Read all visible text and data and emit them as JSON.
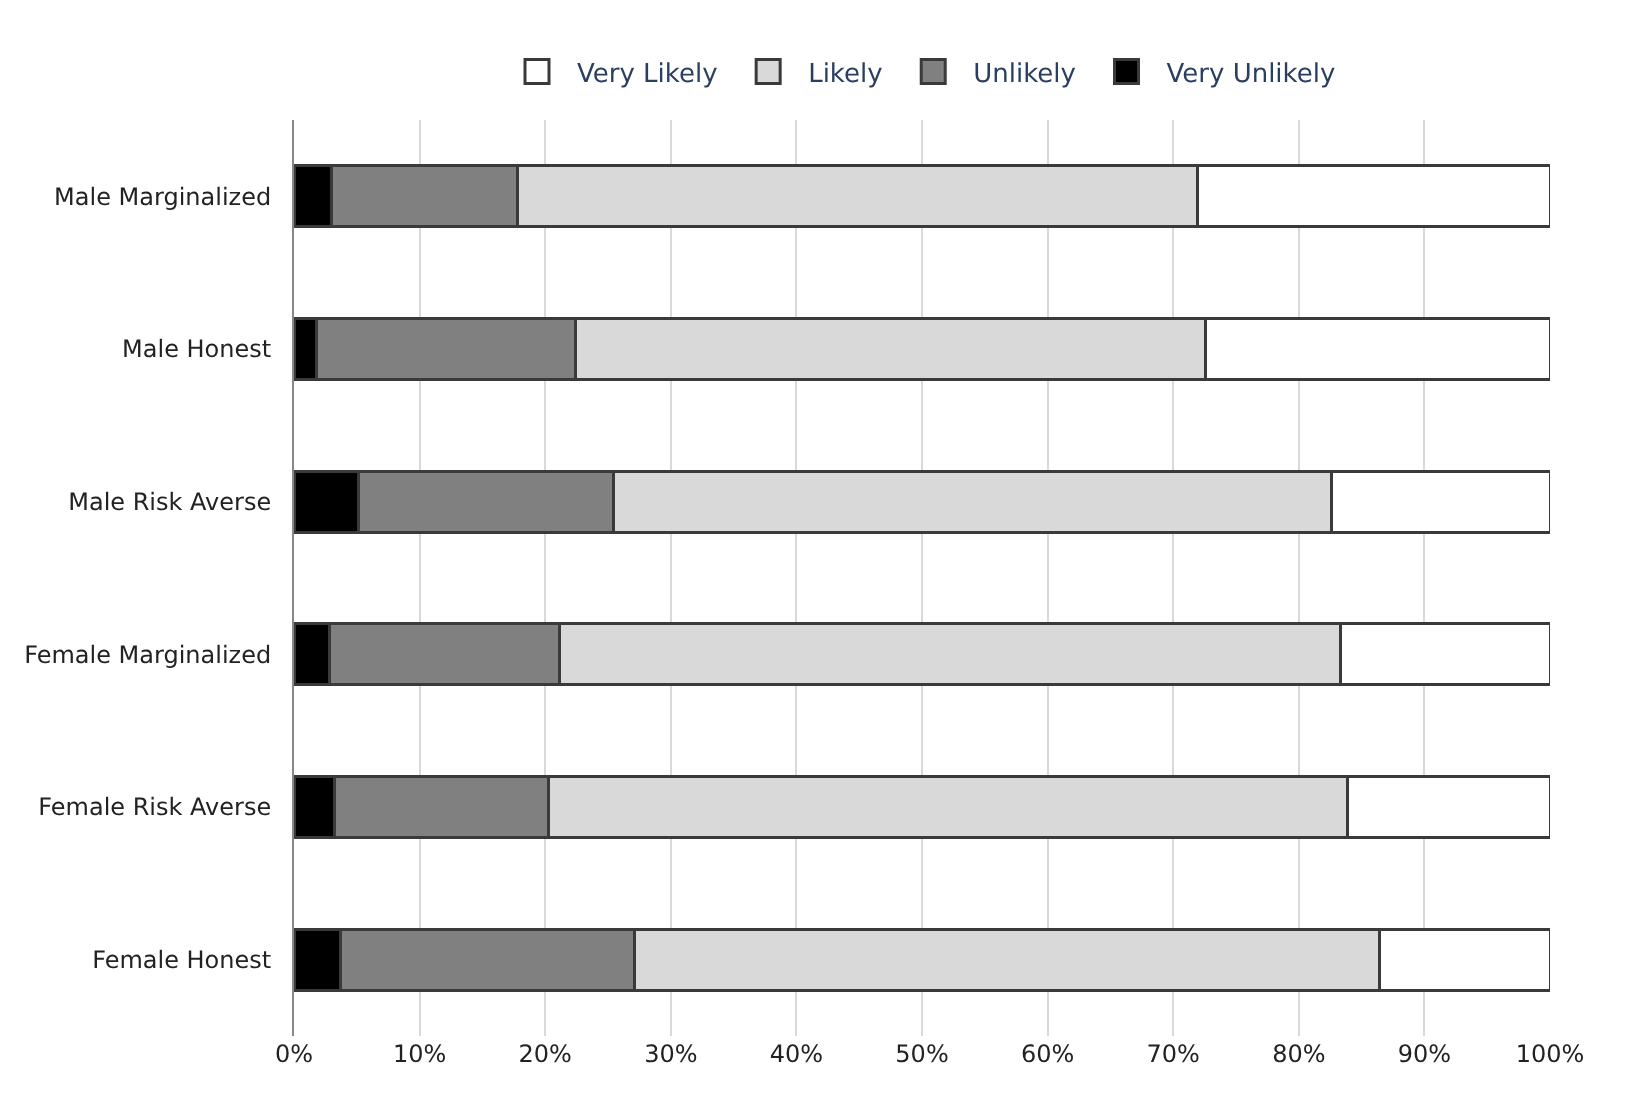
{
  "chart_data": {
    "type": "bar",
    "orientation": "horizontal",
    "stacked": true,
    "categories": [
      "Male Marginalized",
      "Male Honest",
      "Male Risk Averse",
      "Female Marginalized",
      "Female Risk Averse",
      "Female Honest"
    ],
    "series": [
      {
        "name": "Very Unlikely",
        "color": "#000000",
        "values": [
          3.0,
          1.8,
          5.1,
          2.8,
          3.2,
          3.7
        ]
      },
      {
        "name": "Unlikely",
        "color": "#808080",
        "values": [
          14.8,
          20.6,
          20.3,
          18.3,
          17.1,
          23.4
        ]
      },
      {
        "name": "Likely",
        "color": "#d9d9d9",
        "values": [
          54.1,
          50.2,
          57.2,
          62.2,
          63.6,
          59.3
        ]
      },
      {
        "name": "Very Likely",
        "color": "#ffffff",
        "values": [
          28.1,
          27.4,
          17.4,
          16.7,
          16.1,
          13.6
        ]
      }
    ],
    "xlim": [
      0,
      100
    ],
    "xticks": [
      {
        "value": 0,
        "label": "0%"
      },
      {
        "value": 10,
        "label": "10%"
      },
      {
        "value": 20,
        "label": "20%"
      },
      {
        "value": 30,
        "label": "30%"
      },
      {
        "value": 40,
        "label": "40%"
      },
      {
        "value": 50,
        "label": "50%"
      },
      {
        "value": 60,
        "label": "60%"
      },
      {
        "value": 70,
        "label": "70%"
      },
      {
        "value": 80,
        "label": "80%"
      },
      {
        "value": 90,
        "label": "90%"
      },
      {
        "value": 100,
        "label": "100%"
      }
    ],
    "grid": "x",
    "legend": "top"
  }
}
